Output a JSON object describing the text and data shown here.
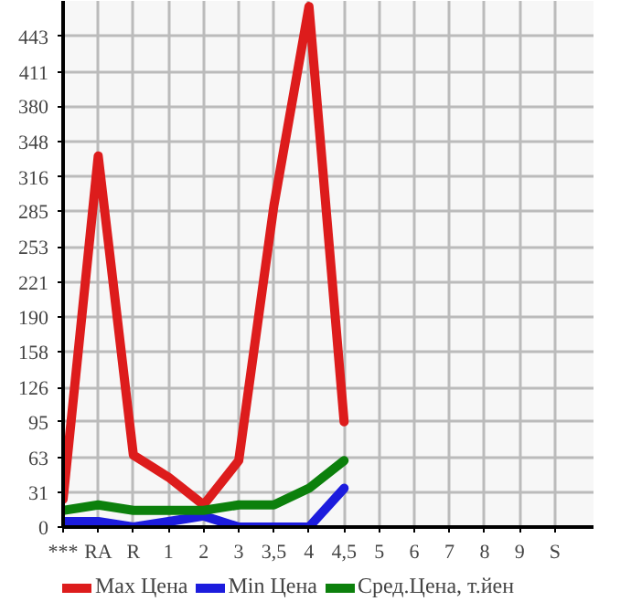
{
  "chart_data": {
    "type": "line",
    "categories": [
      "***",
      "RA",
      "R",
      "1",
      "2",
      "3",
      "3,5",
      "4",
      "4,5",
      "5",
      "6",
      "7",
      "8",
      "9",
      "S"
    ],
    "series": [
      {
        "name": "Max Цена",
        "color": "#dd1c1c",
        "values": [
          25,
          335,
          65,
          45,
          20,
          60,
          290,
          470,
          95,
          null,
          null,
          null,
          null,
          null,
          null
        ]
      },
      {
        "name": "Min Цена",
        "color": "#1c1cdd",
        "values": [
          5,
          5,
          0,
          5,
          10,
          0,
          0,
          0,
          35,
          null,
          null,
          null,
          null,
          null,
          null
        ]
      },
      {
        "name": "Сред.Цена, т.йен",
        "color": "#0c800c",
        "values": [
          15,
          20,
          15,
          15,
          15,
          20,
          20,
          35,
          60,
          null,
          null,
          null,
          null,
          null,
          null
        ]
      }
    ],
    "ylim": [
      0,
      475
    ],
    "yticks": [
      0,
      31,
      63,
      95,
      126,
      158,
      190,
      221,
      253,
      285,
      316,
      348,
      380,
      411,
      443
    ],
    "grid": true,
    "legend": "bottom",
    "marker": "none"
  }
}
